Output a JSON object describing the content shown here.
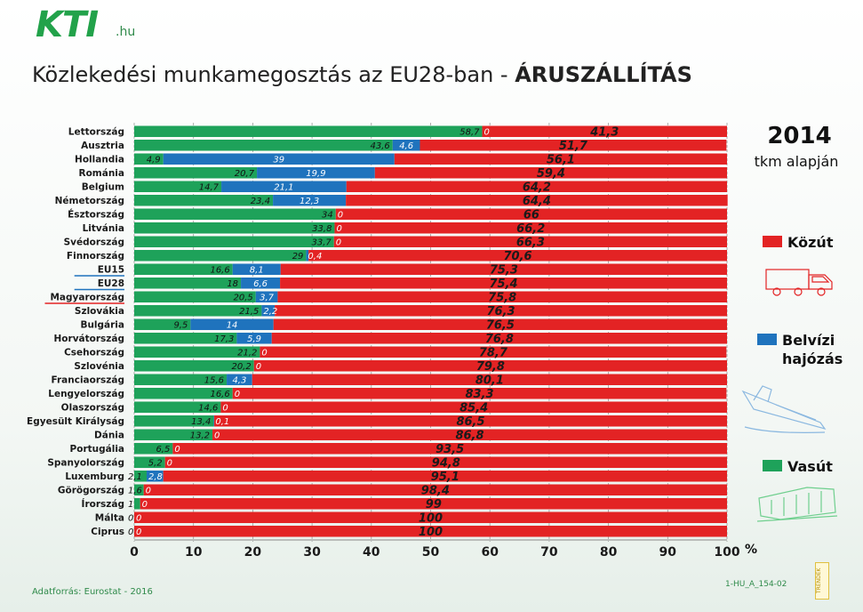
{
  "header": {
    "logo_text": "KTI",
    "logo_domain": ".hu",
    "title_main": "Közlekedési munkamegosztás az EU28-ban - ",
    "title_bold": "ÁRUSZÁLLÍTÁS"
  },
  "side": {
    "year": "2014",
    "basis": "tkm alapján",
    "percent_sign": "%"
  },
  "legend": [
    {
      "label": "Közút",
      "color": "#e32324",
      "icon": "truck-icon"
    },
    {
      "label": "Belvízi hajózás",
      "color": "#1f73bd",
      "icon": "ship-icon"
    },
    {
      "label": "Vasút",
      "color": "#1ea25a",
      "icon": "train-icon"
    }
  ],
  "footer": {
    "source": "Adatforrás: Eurostat - 2016",
    "code": "1-HU_A_154-02",
    "badge": "TRENDEK"
  },
  "chart_data": {
    "type": "bar",
    "orientation": "horizontal",
    "stacked": true,
    "categories": [
      "Lettország",
      "Ausztria",
      "Hollandia",
      "Románia",
      "Belgium",
      "Németország",
      "Észtország",
      "Litvánia",
      "Svédország",
      "Finnország",
      "EU15",
      "EU28",
      "Magyarország",
      "Szlovákia",
      "Bulgária",
      "Horvátország",
      "Csehország",
      "Szlovénia",
      "Franciaország",
      "Lengyelország",
      "Olaszország",
      "Egyesült Királyság",
      "Dánia",
      "Portugália",
      "Spanyolország",
      "Luxemburg",
      "Görögország",
      "Írország",
      "Málta",
      "Ciprus"
    ],
    "series": [
      {
        "name": "Vasút",
        "color": "#1ea25a",
        "values": [
          58.7,
          43.6,
          4.9,
          20.7,
          14.7,
          23.4,
          34,
          33.8,
          33.7,
          29,
          16.6,
          18,
          20.5,
          21.5,
          9.5,
          17.3,
          21.2,
          20.2,
          15.6,
          16.6,
          14.6,
          13.4,
          13.2,
          6.5,
          5.2,
          2.1,
          1.6,
          1,
          0,
          0
        ],
        "labels": [
          "58,7",
          "43,6",
          "4,9",
          "20,7",
          "14,7",
          "23,4",
          "34",
          "33,8",
          "33,7",
          "29",
          "16,6",
          "18",
          "20,5",
          "21,5",
          "9,5",
          "17,3",
          "21,2",
          "20,2",
          "15,6",
          "16,6",
          "14,6",
          "13,4",
          "13,2",
          "6,5",
          "5,2",
          "2,1",
          "1,6",
          "1",
          "0",
          "0"
        ]
      },
      {
        "name": "Belvízi hajózás",
        "color": "#1f73bd",
        "values": [
          0,
          4.6,
          39,
          19.9,
          21.1,
          12.3,
          0,
          0,
          0,
          0.4,
          8.1,
          6.6,
          3.7,
          2.2,
          14,
          5.9,
          0,
          0,
          4.3,
          0,
          0,
          0.1,
          0,
          0,
          0,
          2.8,
          0,
          0,
          0,
          0
        ],
        "labels": [
          "0",
          "4,6",
          "39",
          "19,9",
          "21,1",
          "12,3",
          "0",
          "0",
          "0",
          "0,4",
          "8,1",
          "6,6",
          "3,7",
          "2,2",
          "14",
          "5,9",
          "0",
          "0",
          "4,3",
          "0",
          "0",
          "0,1",
          "0",
          "0",
          "0",
          "2,8",
          "0",
          "0",
          "0",
          "0"
        ]
      },
      {
        "name": "Közút",
        "color": "#e32324",
        "values": [
          41.3,
          51.7,
          56.1,
          59.4,
          64.2,
          64.4,
          66,
          66.2,
          66.3,
          70.6,
          75.3,
          75.4,
          75.8,
          76.3,
          76.5,
          76.8,
          78.7,
          79.8,
          80.1,
          83.3,
          85.4,
          86.5,
          86.8,
          93.5,
          94.8,
          95.1,
          98.4,
          99,
          100,
          100
        ],
        "labels": [
          "41,3",
          "51,7",
          "56,1",
          "59,4",
          "64,2",
          "64,4",
          "66",
          "66,2",
          "66,3",
          "70,6",
          "75,3",
          "75,4",
          "75,8",
          "76,3",
          "76,5",
          "76,8",
          "78,7",
          "79,8",
          "80,1",
          "83,3",
          "85,4",
          "86,5",
          "86,8",
          "93,5",
          "94,8",
          "95,1",
          "98,4",
          "99",
          "100",
          "100"
        ]
      }
    ],
    "xlim": [
      0,
      100
    ],
    "x_ticks": [
      "0",
      "10",
      "20",
      "30",
      "40",
      "50",
      "60",
      "70",
      "80",
      "90",
      "100"
    ],
    "grid": true,
    "highlighted_categories": [
      "EU15",
      "EU28",
      "Magyarország"
    ],
    "highlight_colors": {
      "EU15": "#1f73bd",
      "EU28": "#1f73bd",
      "Magyarország": "#e32324"
    }
  }
}
